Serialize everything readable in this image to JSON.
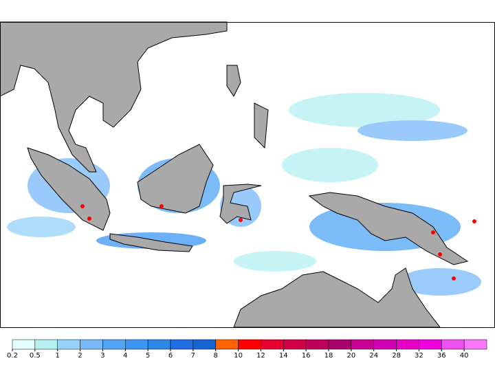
{
  "colorbar": {
    "labels": [
      "0.2",
      "0.5",
      "1",
      "2",
      "3",
      "4",
      "5",
      "6",
      "7",
      "8",
      "10",
      "12",
      "14",
      "16",
      "18",
      "20",
      "24",
      "28",
      "32",
      "36",
      "40"
    ],
    "colors": [
      "#e1ffff",
      "#b4f0f0",
      "#96d2fa",
      "#78b9fa",
      "#50a5f5",
      "#3c96f5",
      "#2d87e6",
      "#1e6ee6",
      "#1464d2",
      "#ff6400",
      "#ff0000",
      "#e60032",
      "#d20046",
      "#be005a",
      "#aa006e",
      "#c80096",
      "#d200b4",
      "#e600c8",
      "#f000dc",
      "#f050f0",
      "#fa78fa"
    ]
  }
}
